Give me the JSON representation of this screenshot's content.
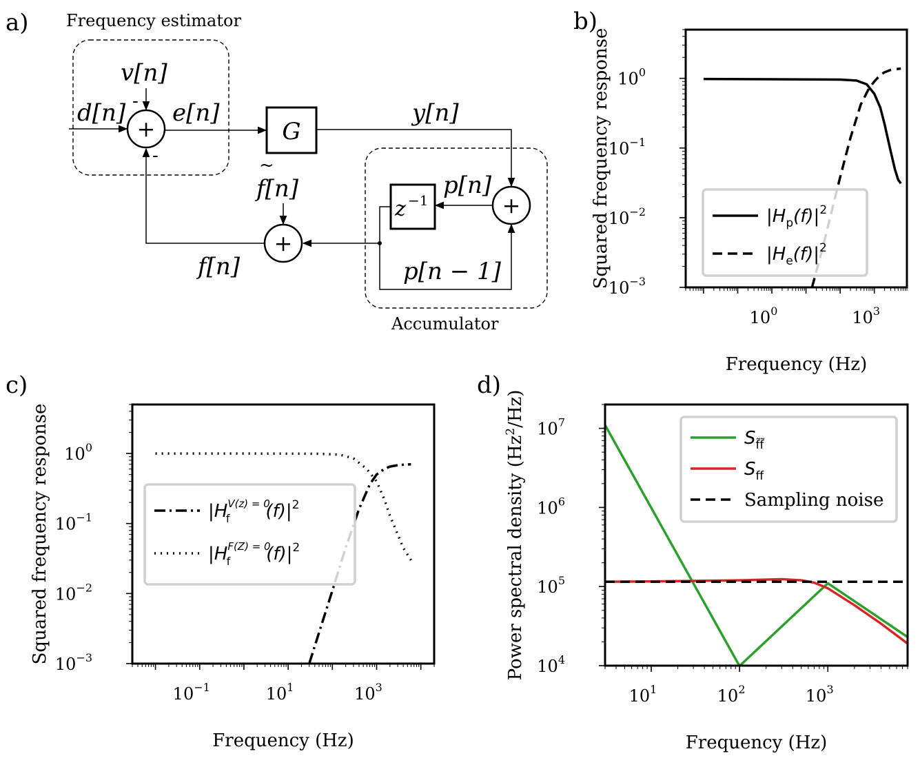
{
  "panel_labels": {
    "a": "a)",
    "b": "b)",
    "c": "c)",
    "d": "d)"
  },
  "panel_a": {
    "title": "Frequency estimator",
    "accumulator_label": "Accumulator",
    "block_gain": "G",
    "block_delay": "z",
    "block_delay_exp": "−1",
    "sum_symbol": "+",
    "minus_symbol": "-",
    "signals": {
      "v": "v[n]",
      "d": "d[n]",
      "e": "e[n]",
      "y": "y[n]",
      "f_tilde": "f[n]",
      "tilde_mark": "~",
      "p": "p[n]",
      "f": "f[n]",
      "p_prev": "p[n − 1]"
    }
  },
  "chart_data": [
    {
      "panel": "b",
      "type": "line",
      "xlabel": "Frequency (Hz)",
      "ylabel": "Squared frequency response",
      "xscale": "log",
      "yscale": "log",
      "xlim": [
        0.003,
        9000
      ],
      "ylim": [
        0.001,
        5
      ],
      "x_tick_labels": [
        {
          "base": "10",
          "exp": "0",
          "value": 1
        },
        {
          "base": "10",
          "exp": "3",
          "value": 1000
        }
      ],
      "y_tick_labels": [
        {
          "base": "10",
          "exp": "0",
          "value": 1
        },
        {
          "base": "10",
          "exp": "−1",
          "value": 0.1
        },
        {
          "base": "10",
          "exp": "−2",
          "value": 0.01
        },
        {
          "base": "10",
          "exp": "−3",
          "value": 0.001
        }
      ],
      "legend_position": "lower-left",
      "series": [
        {
          "name": "|Hp(f)|²",
          "legend_main": "|H",
          "legend_sub": "p",
          "legend_tail": "(f)|",
          "legend_sup": "2",
          "style": "solid",
          "x": [
            0.01,
            1,
            100,
            300,
            600,
            1000,
            1500,
            2000,
            3000,
            4000,
            5000,
            6000
          ],
          "y": [
            0.98,
            0.97,
            0.96,
            0.93,
            0.82,
            0.6,
            0.38,
            0.22,
            0.09,
            0.05,
            0.035,
            0.031
          ]
        },
        {
          "name": "|He(f)|²",
          "legend_main": "|H",
          "legend_sub": "e",
          "legend_tail": "(f)|",
          "legend_sup": "2",
          "style": "dashed",
          "x": [
            15,
            30,
            60,
            100,
            200,
            400,
            700,
            1000,
            1500,
            2000,
            3000,
            4000,
            6000
          ],
          "y": [
            0.001,
            0.0035,
            0.014,
            0.038,
            0.14,
            0.42,
            0.72,
            0.9,
            1.12,
            1.22,
            1.32,
            1.35,
            1.38
          ]
        }
      ]
    },
    {
      "panel": "c",
      "type": "line",
      "xlabel": "Frequency (Hz)",
      "ylabel": "Squared frequency response",
      "xscale": "log",
      "yscale": "log",
      "xlim": [
        0.003,
        20000
      ],
      "ylim": [
        0.001,
        5
      ],
      "x_tick_labels": [
        {
          "base": "10",
          "exp": "−1",
          "value": 0.1
        },
        {
          "base": "10",
          "exp": "1",
          "value": 10
        },
        {
          "base": "10",
          "exp": "3",
          "value": 1000
        }
      ],
      "y_tick_labels": [
        {
          "base": "10",
          "exp": "0",
          "value": 1
        },
        {
          "base": "10",
          "exp": "−1",
          "value": 0.1
        },
        {
          "base": "10",
          "exp": "−2",
          "value": 0.01
        },
        {
          "base": "10",
          "exp": "−3",
          "value": 0.001
        }
      ],
      "legend_position": "center-left",
      "series": [
        {
          "name": "|Hf^(V(z)=0)(f)|²",
          "legend_main": "|H",
          "legend_sub": "f",
          "legend_supx": "V(z) = 0",
          "legend_tail": "(f)|",
          "legend_sup": "2",
          "style": "dashdot",
          "x": [
            30,
            60,
            100,
            200,
            400,
            700,
            1000,
            1500,
            2000,
            3000,
            4000,
            6000
          ],
          "y": [
            0.001,
            0.004,
            0.011,
            0.045,
            0.16,
            0.36,
            0.5,
            0.6,
            0.65,
            0.68,
            0.69,
            0.7
          ]
        },
        {
          "name": "|Hf^(F(Z)=0)(f)|²",
          "legend_main": "|H",
          "legend_sub": "f",
          "legend_supx": "F(Z) = 0",
          "legend_tail": "(f)|",
          "legend_sup": "2",
          "style": "dotted",
          "x": [
            0.01,
            1,
            50,
            150,
            300,
            600,
            1000,
            1500,
            2000,
            3000,
            4000,
            6000
          ],
          "y": [
            1.0,
            1.0,
            0.99,
            0.96,
            0.85,
            0.6,
            0.4,
            0.22,
            0.13,
            0.07,
            0.045,
            0.03
          ]
        }
      ]
    },
    {
      "panel": "d",
      "type": "line",
      "xlabel": "Frequency (Hz)",
      "ylabel": "Power spectral density (Hz²/Hz)",
      "ylabel_main": "Power spectral density (Hz",
      "ylabel_sup": "2",
      "ylabel_tail": "/Hz)",
      "xscale": "log",
      "yscale": "log",
      "xlim": [
        3,
        8000
      ],
      "ylim": [
        10000,
        20000000
      ],
      "x_tick_labels": [
        {
          "base": "10",
          "exp": "1",
          "value": 10
        },
        {
          "base": "10",
          "exp": "2",
          "value": 100
        },
        {
          "base": "10",
          "exp": "3",
          "value": 1000
        }
      ],
      "y_tick_labels": [
        {
          "base": "10",
          "exp": "7",
          "value": 10000000
        },
        {
          "base": "10",
          "exp": "6",
          "value": 1000000
        },
        {
          "base": "10",
          "exp": "5",
          "value": 100000
        },
        {
          "base": "10",
          "exp": "4",
          "value": 10000
        }
      ],
      "legend_position": "top-right",
      "series": [
        {
          "name": "Sf̃f̃",
          "legend_main": "S",
          "legend_sub": "f̃f̃",
          "color": "#2ca02c",
          "style": "solid",
          "x": [
            3,
            10,
            100,
            1000,
            8000
          ],
          "y": [
            11000000,
            990000,
            9900,
            110000,
            23000
          ]
        },
        {
          "name": "Sff",
          "legend_main": "S",
          "legend_sub": "ff",
          "color": "#d62728",
          "style": "solid",
          "x": [
            3,
            10,
            100,
            300,
            500,
            700,
            1000,
            2000,
            4000,
            8000
          ],
          "y": [
            115000,
            116000,
            120000,
            124000,
            120000,
            112000,
            95000,
            58000,
            34000,
            19000
          ]
        },
        {
          "name": "Sampling noise",
          "legend_main": "Sampling noise",
          "color": "#000000",
          "style": "dashed",
          "x": [
            3,
            8000
          ],
          "y": [
            115000,
            115000
          ]
        }
      ]
    }
  ]
}
